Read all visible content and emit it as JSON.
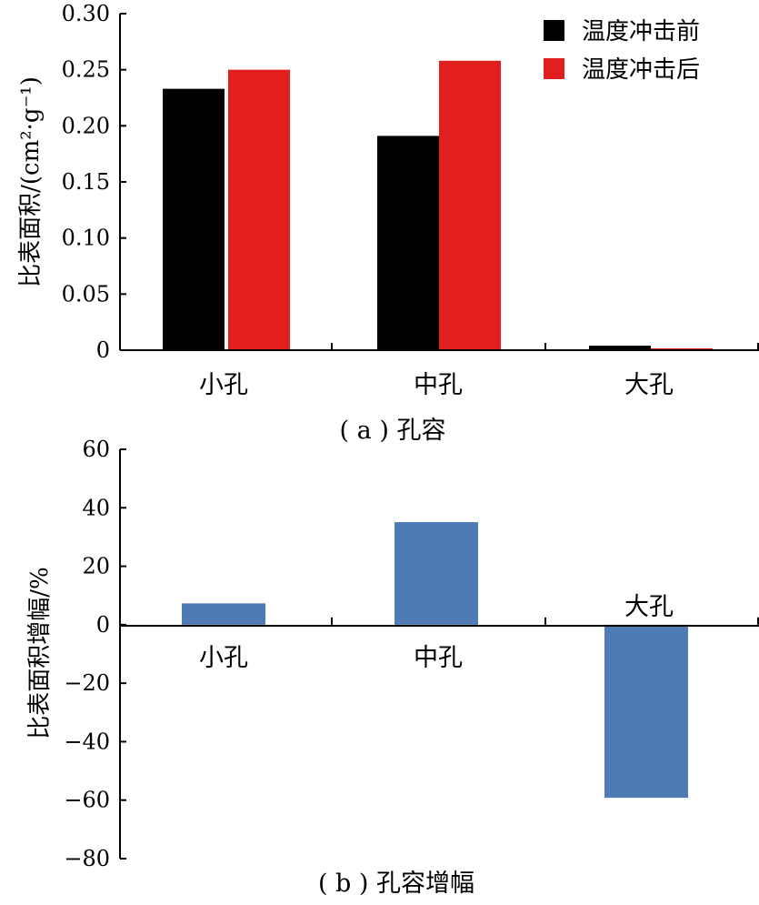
{
  "chart_data": [
    {
      "type": "bar",
      "caption": "( a ) 孔容",
      "ylabel": "比表面积/(cm²·g⁻¹)",
      "categories": [
        "小孔",
        "中孔",
        "大孔"
      ],
      "series": [
        {
          "name": "温度冲击前",
          "color": "#000000",
          "values": [
            0.233,
            0.191,
            0.004
          ]
        },
        {
          "name": "温度冲击后",
          "color": "#e31e1e",
          "values": [
            0.25,
            0.258,
            0.001
          ]
        }
      ],
      "ylim": [
        0,
        0.3
      ],
      "yticks": [
        "0",
        "0.05",
        "0.10",
        "0.15",
        "0.20",
        "0.25",
        "0.30"
      ],
      "legend": "top-right",
      "grid": false
    },
    {
      "type": "bar",
      "caption": "( b ) 孔容增幅",
      "ylabel": "比表面积增幅/%",
      "categories": [
        "小孔",
        "中孔",
        "大孔"
      ],
      "series": [
        {
          "color": "#4f7bb5",
          "values": [
            7.3,
            35.1,
            -59.2
          ]
        }
      ],
      "ylim": [
        -80,
        60
      ],
      "yticks": [
        "60",
        "40",
        "20",
        "0",
        "−20",
        "−40",
        "−60",
        "−80"
      ],
      "grid": false
    }
  ]
}
